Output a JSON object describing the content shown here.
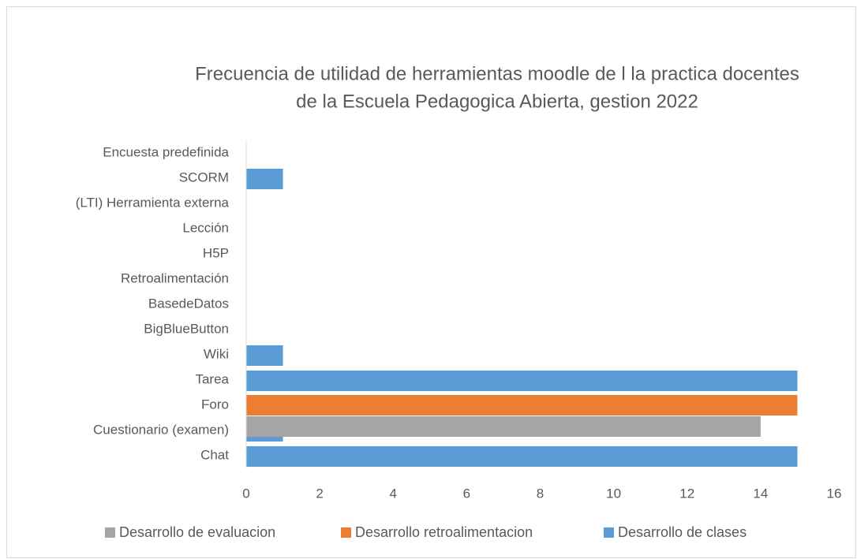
{
  "chart_data": {
    "type": "bar",
    "orientation": "horizontal",
    "title": [
      "Frecuencia de utilidad de herramientas moodle de l la practica docentes",
      "de la Escuela Pedagogica Abierta, gestion 2022"
    ],
    "categories": [
      "Chat",
      "Cuestionario (examen)",
      "Foro",
      "Tarea",
      "Wiki",
      "BigBlueButton",
      "BasedeDatos",
      "Retroalimentación",
      "H5P",
      "Lección",
      "(LTI) Herramienta externa",
      "SCORM",
      "Encuesta predefinida"
    ],
    "series": [
      {
        "name": "Desarrollo de evaluacion",
        "color": "#a5a5a5",
        "values": [
          null,
          14,
          null,
          null,
          null,
          null,
          null,
          null,
          null,
          null,
          null,
          null,
          null
        ]
      },
      {
        "name": "Desarrollo retroalimentacion",
        "color": "#ed7d31",
        "values": [
          null,
          null,
          15,
          null,
          null,
          null,
          null,
          null,
          null,
          null,
          null,
          null,
          null
        ]
      },
      {
        "name": "Desarrollo de clases",
        "color": "#5b9bd5",
        "values": [
          15,
          1,
          null,
          15,
          1,
          0,
          0,
          0,
          0,
          0,
          0,
          1,
          0
        ]
      }
    ],
    "xlim": [
      0,
      16
    ],
    "xticks": [
      0,
      2,
      4,
      6,
      8,
      10,
      12,
      14,
      16
    ],
    "grid": false,
    "legend": "bottom"
  }
}
